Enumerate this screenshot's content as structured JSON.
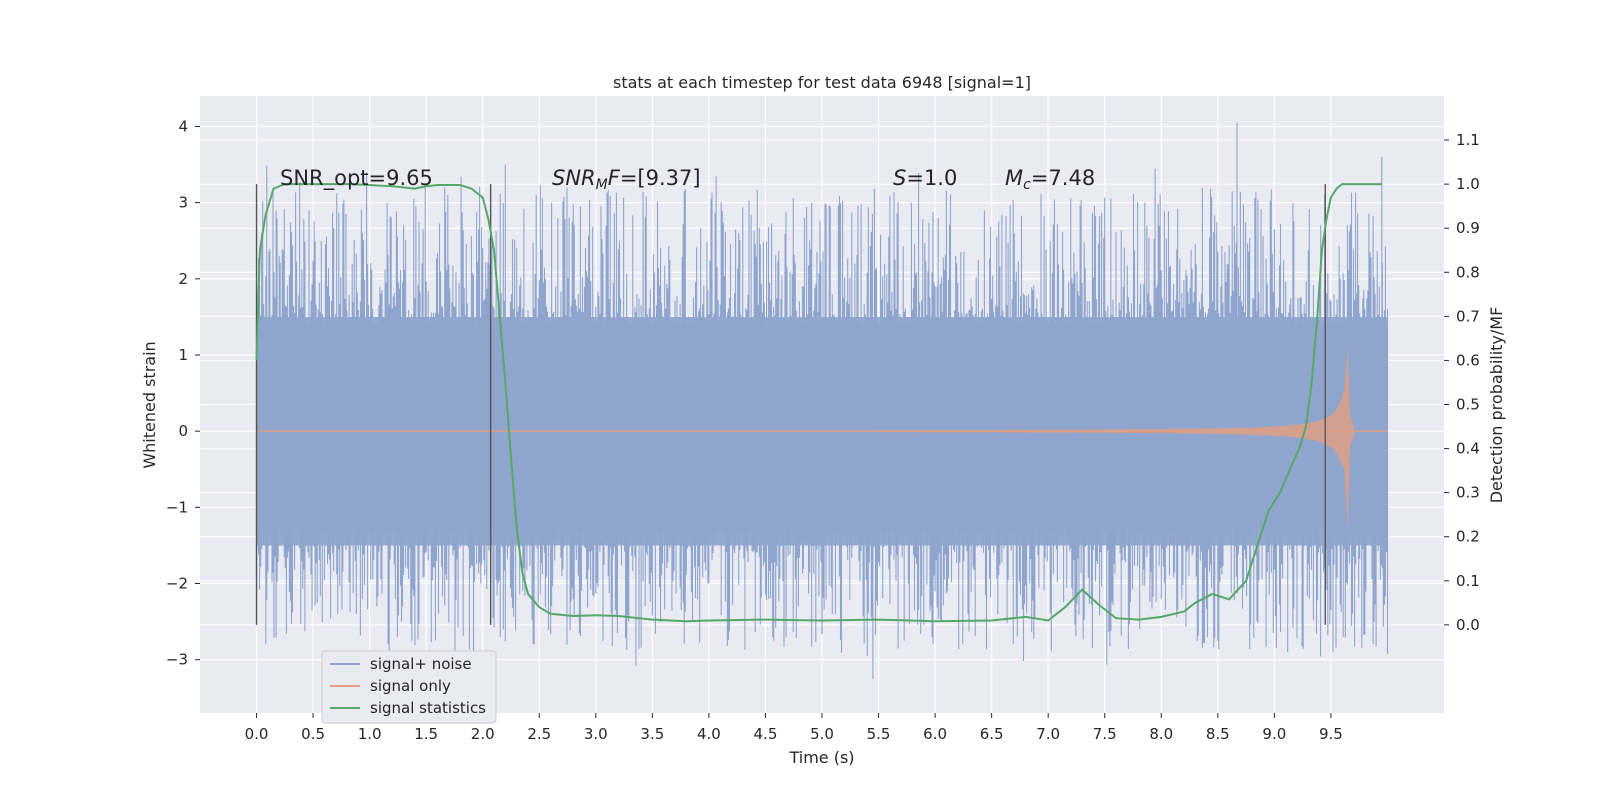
{
  "chart_data": {
    "type": "line",
    "title": "stats at each timestep for test data 6948 [signal=1]",
    "xlabel": "Time (s)",
    "ylabel": "Whitened strain",
    "y2label": "Detection probability/MF",
    "xlim": [
      -0.5,
      10.5
    ],
    "ylim": [
      -3.7,
      4.4
    ],
    "y2lim": [
      -0.2,
      1.2
    ],
    "x_ticks": [
      "0.0",
      "0.5",
      "1.0",
      "1.5",
      "2.0",
      "2.5",
      "3.0",
      "3.5",
      "4.0",
      "4.5",
      "5.0",
      "5.5",
      "6.0",
      "6.5",
      "7.0",
      "7.5",
      "8.0",
      "8.5",
      "9.0",
      "9.5"
    ],
    "y_ticks": [
      "−3",
      "−2",
      "−1",
      "0",
      "1",
      "2",
      "3",
      "4"
    ],
    "y2_ticks": [
      "0.0",
      "0.1",
      "0.2",
      "0.3",
      "0.4",
      "0.5",
      "0.6",
      "0.7",
      "0.8",
      "0.9",
      "1.0",
      "1.1"
    ],
    "grid": true,
    "legend_position": "lower-left",
    "annotations": {
      "snr_opt": "SNR_opt=9.65",
      "snr_mf_base": "SNR",
      "snr_mf_sub": "M",
      "snr_mf_tail": "F",
      "snr_mf_value": "=[9.37]",
      "s_sym": "S",
      "s_value": "=1.0",
      "mc_sym": "M",
      "mc_sub": "c",
      "mc_value": "=7.48"
    },
    "vertical_markers": [
      0.0,
      2.07,
      9.45
    ],
    "series": [
      {
        "name": "signal+ noise",
        "color": "#8fa5cd",
        "x_range": [
          0.0,
          10.0
        ],
        "envelope_abs": 1.5,
        "peak_max": 4.05,
        "peak_min": -3.25
      },
      {
        "name": "signal only",
        "color": "#dd9f85",
        "chirp": {
          "start": 5.5,
          "merger": 9.65,
          "end": 10.0,
          "amplitude_at_9": 0.18,
          "peak_amplitude": 1.1,
          "peak_min": -1.3
        }
      },
      {
        "name": "signal statistics",
        "color": "#55a868",
        "axis": "right",
        "x": [
          0.0,
          0.03,
          0.08,
          0.15,
          0.25,
          0.4,
          0.6,
          0.8,
          1.0,
          1.2,
          1.4,
          1.5,
          1.6,
          1.8,
          1.9,
          2.0,
          2.05,
          2.1,
          2.15,
          2.2,
          2.25,
          2.3,
          2.35,
          2.4,
          2.5,
          2.6,
          2.8,
          3.0,
          3.2,
          3.5,
          3.8,
          4.0,
          4.5,
          5.0,
          5.5,
          6.0,
          6.5,
          6.8,
          7.0,
          7.15,
          7.3,
          7.45,
          7.6,
          7.8,
          8.0,
          8.2,
          8.3,
          8.45,
          8.6,
          8.75,
          8.85,
          8.95,
          9.05,
          9.15,
          9.22,
          9.28,
          9.33,
          9.38,
          9.42,
          9.46,
          9.5,
          9.55,
          9.6,
          9.65,
          9.75,
          9.85,
          9.95
        ],
        "y": [
          0.6,
          0.85,
          0.93,
          0.99,
          1.0,
          1.0,
          1.0,
          1.0,
          0.998,
          0.995,
          0.99,
          0.995,
          0.998,
          0.998,
          0.99,
          0.97,
          0.92,
          0.85,
          0.7,
          0.55,
          0.38,
          0.22,
          0.12,
          0.07,
          0.04,
          0.025,
          0.02,
          0.022,
          0.02,
          0.012,
          0.008,
          0.01,
          0.012,
          0.01,
          0.012,
          0.008,
          0.01,
          0.018,
          0.01,
          0.04,
          0.08,
          0.045,
          0.015,
          0.012,
          0.018,
          0.03,
          0.05,
          0.07,
          0.058,
          0.1,
          0.18,
          0.26,
          0.3,
          0.36,
          0.4,
          0.45,
          0.55,
          0.7,
          0.85,
          0.92,
          0.97,
          0.99,
          1.0,
          1.0,
          1.0,
          1.0,
          1.0
        ]
      }
    ]
  }
}
